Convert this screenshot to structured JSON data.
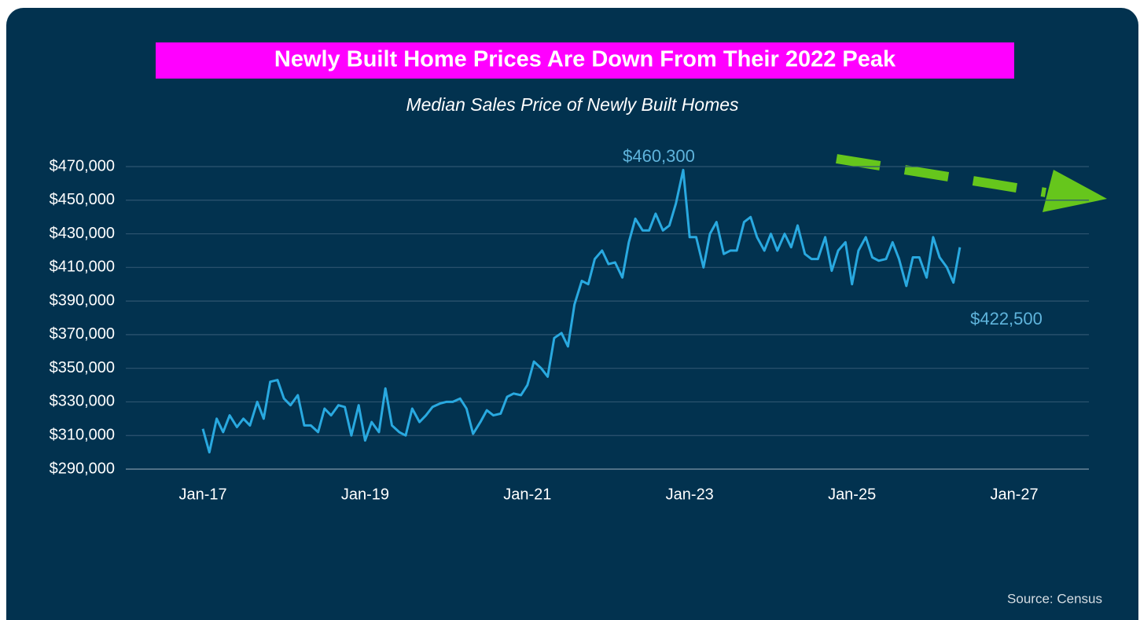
{
  "chart_data": {
    "type": "line",
    "title": "Newly Built Home Prices Are Down From Their 2022 Peak",
    "subtitle": "Median Sales Price of Newly Built Homes",
    "source": "Source: Census",
    "annotations": [
      "$460,300",
      "$422,500"
    ],
    "color": "#29a9e0",
    "grid": true,
    "x": [
      2017,
      2017.08,
      2017.17,
      2017.25,
      2017.33,
      2017.42,
      2017.5,
      2017.58,
      2017.67,
      2017.75,
      2017.83,
      2017.92,
      2018,
      2018.08,
      2018.17,
      2018.25,
      2018.33,
      2018.42,
      2018.5,
      2018.58,
      2018.67,
      2018.75,
      2018.83,
      2018.92,
      2019,
      2019.08,
      2019.17,
      2019.25,
      2019.33,
      2019.42,
      2019.5,
      2019.58,
      2019.67,
      2019.75,
      2019.83,
      2019.92,
      2020,
      2020.08,
      2020.17,
      2020.25,
      2020.33,
      2020.42,
      2020.5,
      2020.58,
      2020.67,
      2020.75,
      2020.83,
      2020.92,
      2021,
      2021.08,
      2021.17,
      2021.25,
      2021.33,
      2021.42,
      2021.5,
      2021.58,
      2021.67,
      2021.75,
      2021.83,
      2021.92,
      2022,
      2022.08,
      2022.17,
      2022.25,
      2022.33,
      2022.42,
      2022.5,
      2022.58,
      2022.67,
      2022.75,
      2022.83,
      2022.92,
      2023,
      2023.08,
      2023.17,
      2023.25,
      2023.33,
      2023.42,
      2023.5,
      2023.58,
      2023.67,
      2023.75,
      2023.83,
      2023.92,
      2024,
      2024.08,
      2024.17,
      2024.25,
      2024.33,
      2024.42,
      2024.5,
      2024.58,
      2024.67,
      2024.75,
      2024.83,
      2024.92,
      2025,
      2025.08,
      2025.17,
      2025.25,
      2025.33,
      2025.42,
      2025.5,
      2025.58,
      2025.67,
      2025.75,
      2025.83,
      2025.92,
      2026,
      2026.08,
      2026.17,
      2026.25,
      2026.33
    ],
    "values": [
      314000,
      300000,
      320000,
      312000,
      322000,
      315000,
      320000,
      316000,
      330000,
      320000,
      342000,
      343000,
      332000,
      328000,
      334000,
      316000,
      316000,
      312000,
      326000,
      322000,
      328000,
      327000,
      310000,
      328000,
      307000,
      318000,
      312000,
      338000,
      316000,
      312000,
      310000,
      326000,
      318000,
      322000,
      327000,
      329000,
      330000,
      330000,
      332000,
      326000,
      311000,
      318000,
      325000,
      322000,
      323000,
      333000,
      335000,
      334000,
      340000,
      354000,
      350000,
      345000,
      368000,
      371000,
      363000,
      388000,
      402000,
      400000,
      415000,
      420000,
      412000,
      413000,
      404000,
      425000,
      439000,
      432000,
      432000,
      442000,
      432000,
      435000,
      448000,
      468000,
      428000,
      428000,
      410000,
      430000,
      437000,
      418000,
      420000,
      420000,
      437000,
      440000,
      428000,
      420000,
      430000,
      420000,
      430000,
      422000,
      435000,
      418000,
      415000,
      415000,
      428000,
      408000,
      420000,
      425000,
      400000,
      420000,
      428000,
      416000,
      414000,
      415000,
      425000,
      415000,
      399000,
      416000,
      416000,
      404000,
      428000,
      416000,
      410000,
      401000,
      422000
    ],
    "xlim": [
      2016.05,
      2027.92
    ],
    "xticks": [
      {
        "value": 2017,
        "label": "Jan-17"
      },
      {
        "value": 2019,
        "label": "Jan-19"
      },
      {
        "value": 2021,
        "label": "Jan-21"
      },
      {
        "value": 2023,
        "label": "Jan-23"
      },
      {
        "value": 2025,
        "label": "Jan-25"
      },
      {
        "value": 2027,
        "label": "Jan-27"
      }
    ],
    "ylim": [
      290000,
      470000
    ],
    "yticks": [
      {
        "value": 290000,
        "label": "$290,000"
      },
      {
        "value": 310000,
        "label": "$310,000"
      },
      {
        "value": 330000,
        "label": "$330,000"
      },
      {
        "value": 350000,
        "label": "$350,000"
      },
      {
        "value": 370000,
        "label": "$370,000"
      },
      {
        "value": 390000,
        "label": "$390,000"
      },
      {
        "value": 410000,
        "label": "$410,000"
      },
      {
        "value": 430000,
        "label": "$430,000"
      },
      {
        "value": 450000,
        "label": "$450,000"
      },
      {
        "value": 470000,
        "label": "$470,000"
      }
    ]
  }
}
